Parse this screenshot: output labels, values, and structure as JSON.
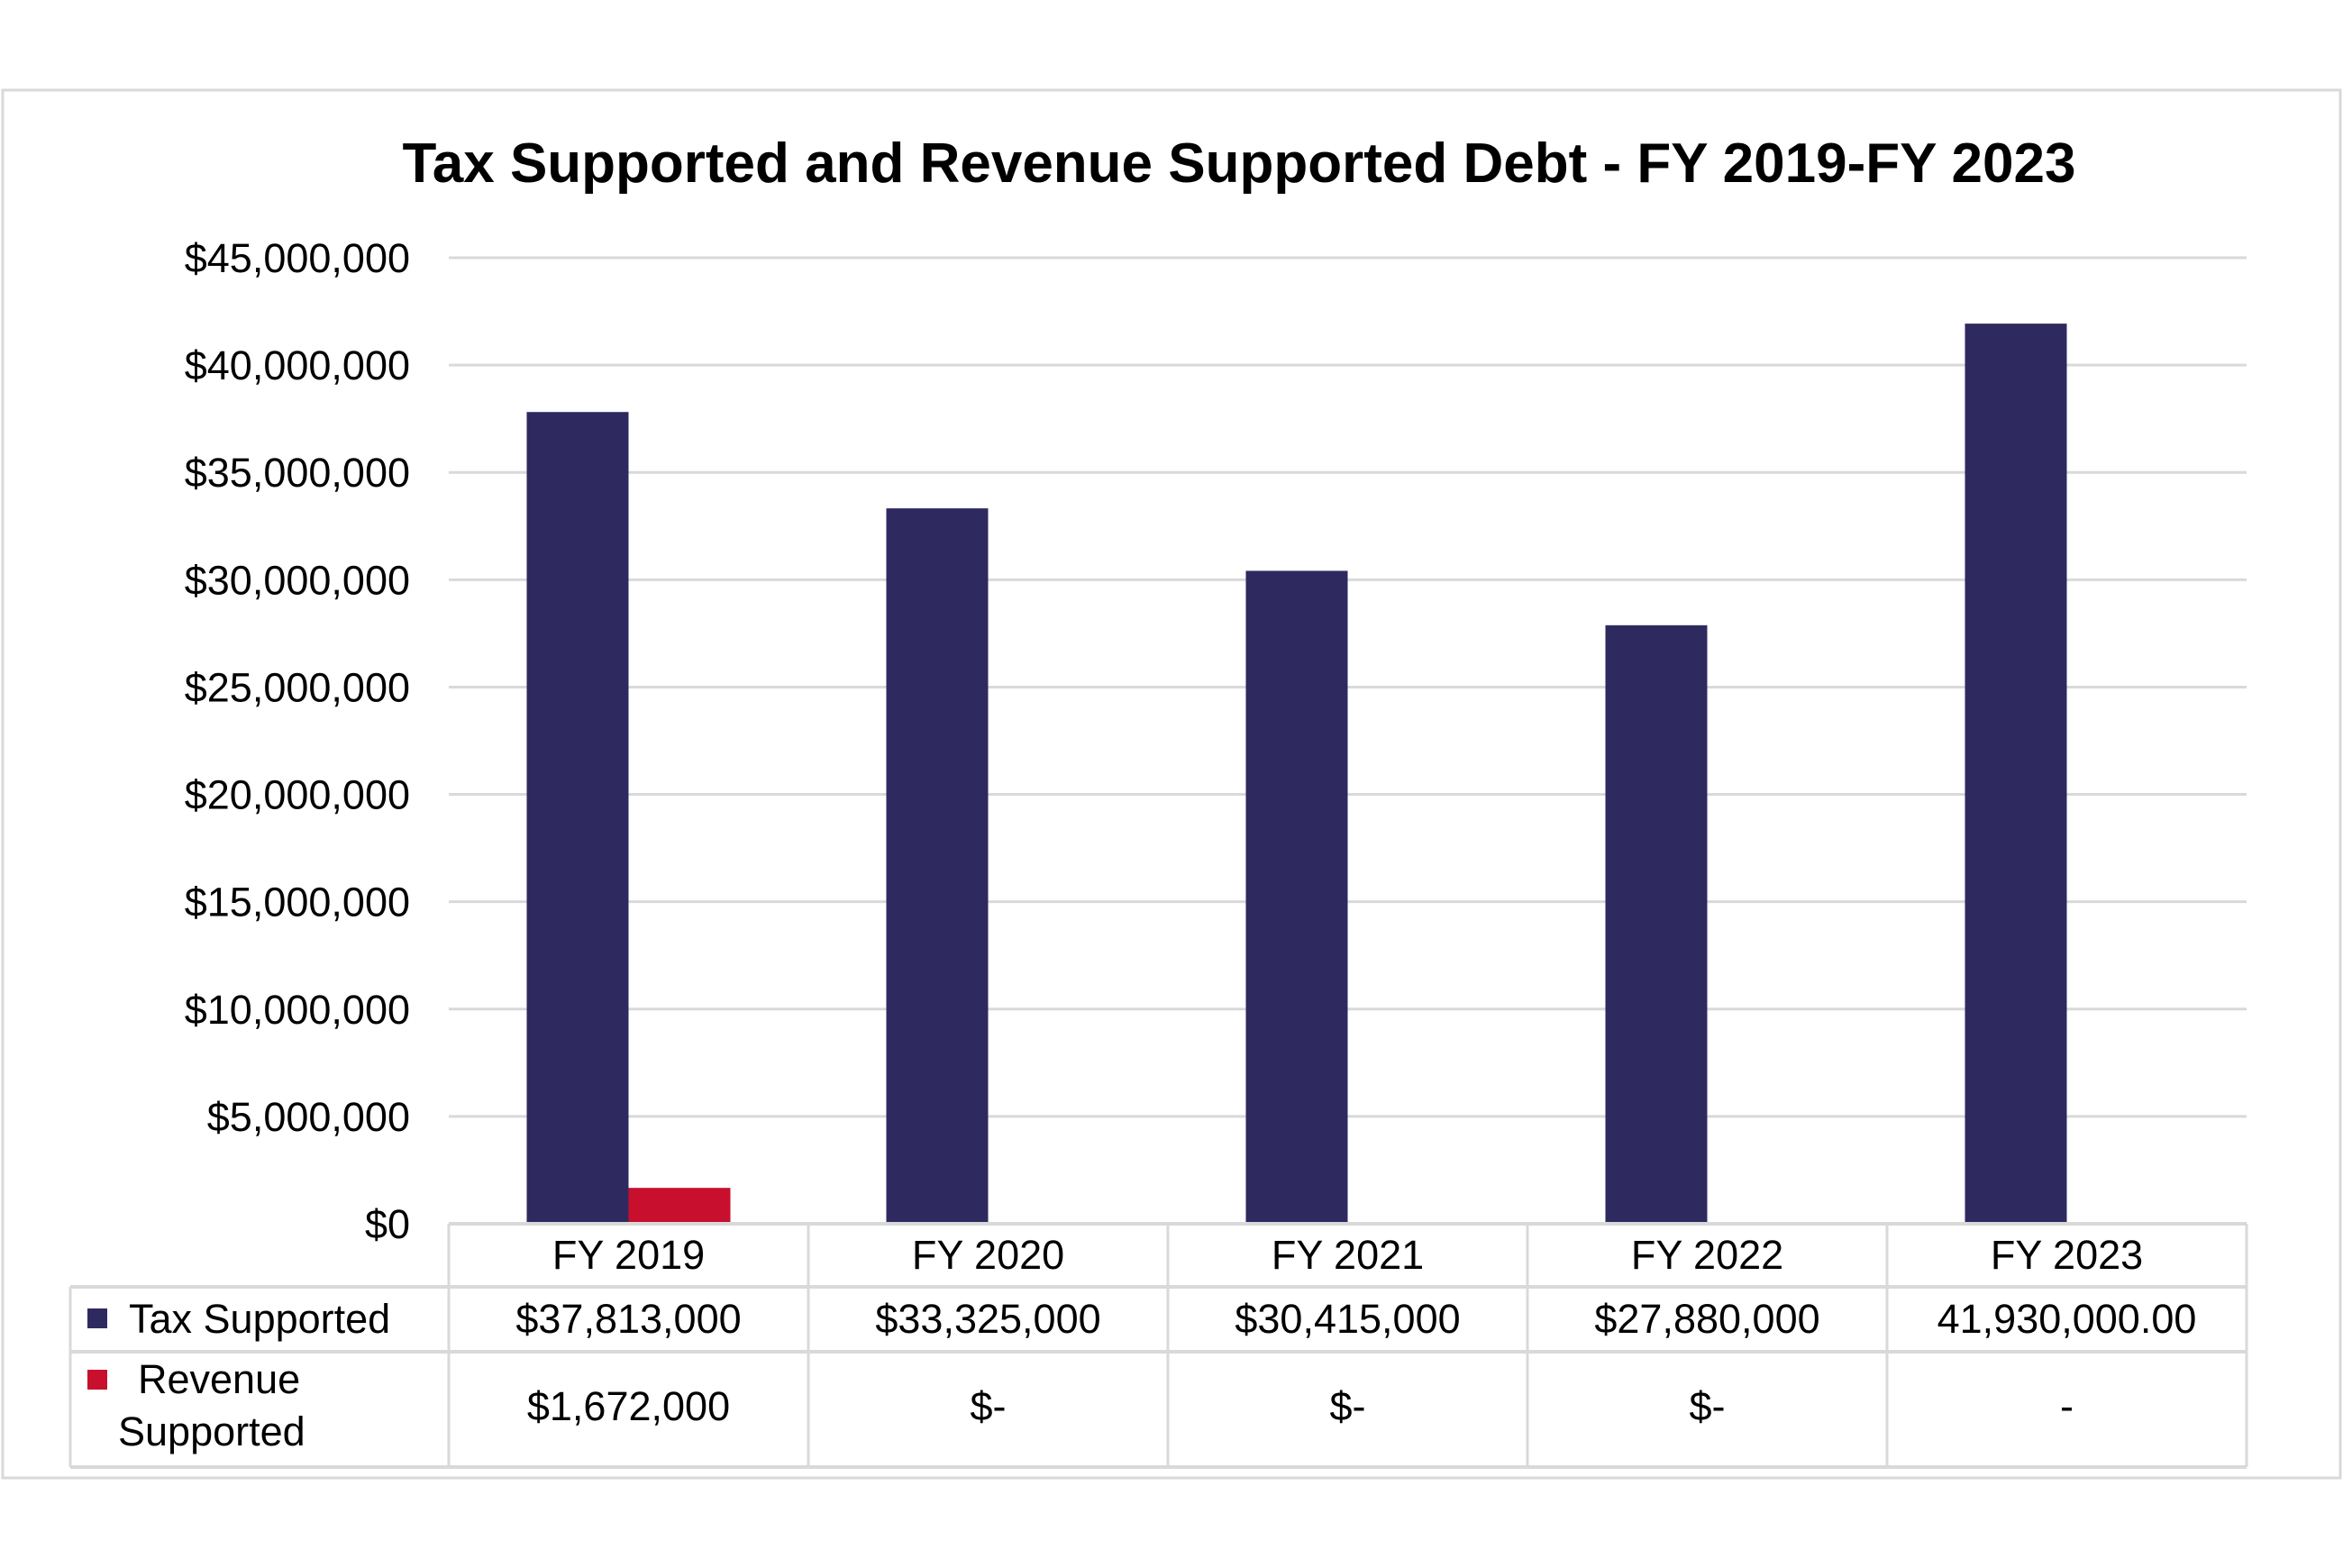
{
  "chart_data": {
    "type": "bar",
    "title": "Tax Supported and Revenue Supported Debt - FY 2019-FY 2023",
    "xlabel": "",
    "ylabel": "",
    "categories": [
      "FY 2019",
      "FY 2020",
      "FY 2021",
      "FY 2022",
      "FY 2023"
    ],
    "ylim": [
      0,
      45000000
    ],
    "yticks": [
      0,
      5000000,
      10000000,
      15000000,
      20000000,
      25000000,
      30000000,
      35000000,
      40000000,
      45000000
    ],
    "ytick_labels": [
      "$0",
      "$5,000,000",
      "$10,000,000",
      "$15,000,000",
      "$20,000,000",
      "$25,000,000",
      "$30,000,000",
      "$35,000,000",
      "$40,000,000",
      "$45,000,000"
    ],
    "grid": true,
    "legend": "data-table",
    "series": [
      {
        "name": "Tax Supported",
        "color": "#2E2A60",
        "values": [
          37813000,
          33325000,
          30415000,
          27880000,
          41930000
        ],
        "table_labels": [
          "$37,813,000",
          "$33,325,000",
          "$30,415,000",
          "$27,880,000",
          "41,930,000.00"
        ]
      },
      {
        "name": "Revenue Supported",
        "name_lines": [
          "Revenue",
          "Supported"
        ],
        "color": "#C8102E",
        "values": [
          1672000,
          0,
          0,
          0,
          0
        ],
        "table_labels": [
          "$1,672,000",
          "$-",
          "$-",
          "$-",
          "-"
        ]
      }
    ]
  }
}
